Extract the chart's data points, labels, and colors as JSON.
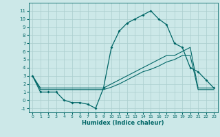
{
  "xlabel": "Humidex (Indice chaleur)",
  "background_color": "#cce8e8",
  "grid_color": "#aacece",
  "line_color": "#006666",
  "x": [
    0,
    1,
    2,
    3,
    4,
    5,
    6,
    7,
    8,
    9,
    10,
    11,
    12,
    13,
    14,
    15,
    16,
    17,
    18,
    19,
    20,
    21,
    22,
    23
  ],
  "y_main": [
    3,
    1,
    1,
    1,
    0,
    -0.3,
    -0.3,
    -0.5,
    -1,
    1.5,
    6.5,
    8.5,
    9.5,
    10,
    10.5,
    11,
    10,
    9.3,
    7,
    6.5,
    4,
    3.5,
    2.5,
    1.5
  ],
  "y_upper": [
    3,
    1.5,
    1.5,
    1.5,
    1.5,
    1.5,
    1.5,
    1.5,
    1.5,
    1.5,
    2.0,
    2.5,
    3.0,
    3.5,
    4.0,
    4.5,
    5.0,
    5.5,
    5.5,
    6.0,
    6.5,
    1.5,
    1.5,
    1.5
  ],
  "y_lower": [
    3,
    1.3,
    1.3,
    1.3,
    1.3,
    1.3,
    1.3,
    1.3,
    1.3,
    1.3,
    1.6,
    2.0,
    2.5,
    3.0,
    3.5,
    3.8,
    4.2,
    4.7,
    5.0,
    5.5,
    5.5,
    1.3,
    1.3,
    1.3
  ],
  "ylim": [
    -1.5,
    12
  ],
  "xlim": [
    -0.5,
    23.5
  ],
  "yticks": [
    -1,
    0,
    1,
    2,
    3,
    4,
    5,
    6,
    7,
    8,
    9,
    10,
    11
  ],
  "xticks": [
    0,
    1,
    2,
    3,
    4,
    5,
    6,
    7,
    8,
    9,
    10,
    11,
    12,
    13,
    14,
    15,
    16,
    17,
    18,
    19,
    20,
    21,
    22,
    23
  ]
}
